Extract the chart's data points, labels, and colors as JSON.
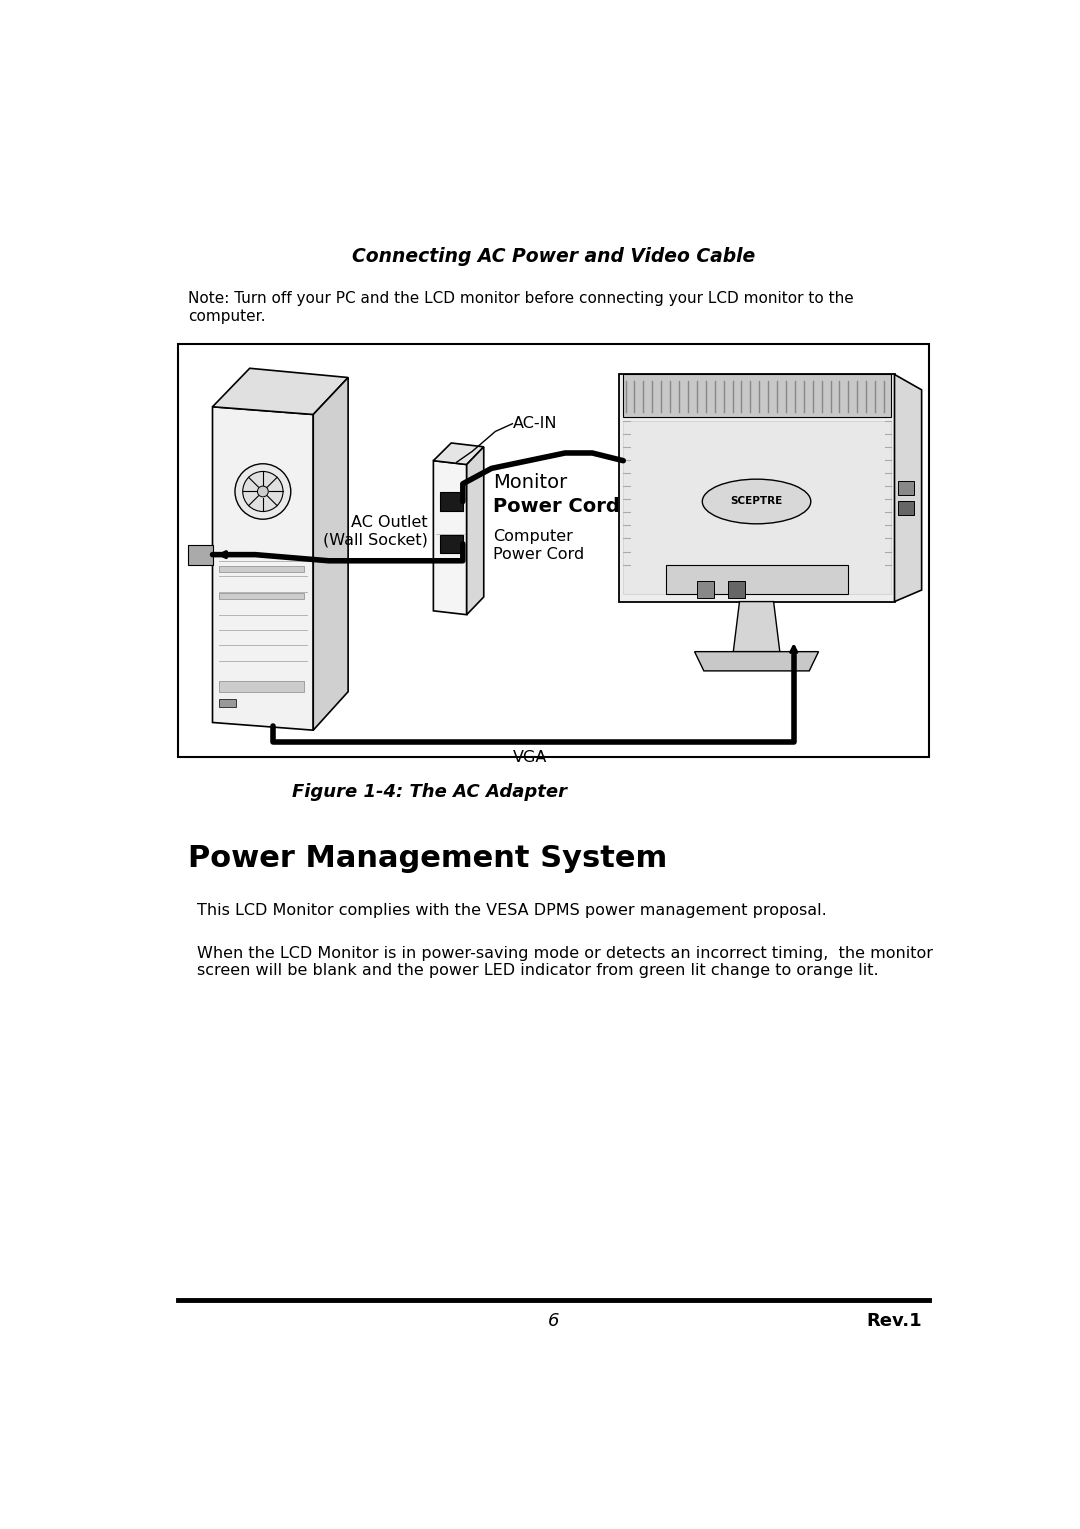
{
  "background_color": "#ffffff",
  "page_width": 10.8,
  "page_height": 15.29,
  "section_title": "Connecting AC Power and Video Cable",
  "note_text": "Note: Turn off your PC and the LCD monitor before connecting your LCD monitor to the\ncomputer.",
  "figure_caption": "Figure 1-4: The AC Adapter",
  "pms_heading": "Power Management System",
  "pms_para1": "This LCD Monitor complies with the VESA DPMS power management proposal.",
  "pms_para2": "When the LCD Monitor is in power-saving mode or detects an incorrect timing,  the monitor\nscreen will be blank and the power LED indicator from green lit change to orange lit.",
  "footer_page": "6",
  "footer_rev": "Rev.1",
  "label_ac_in": "AC-IN",
  "label_monitor": "Monitor",
  "label_power_cord": "Power Cord",
  "label_ac_outlet": "AC Outlet\n(Wall Socket)",
  "label_computer_power_cord": "Computer\nPower Cord",
  "label_vga": "VGA"
}
